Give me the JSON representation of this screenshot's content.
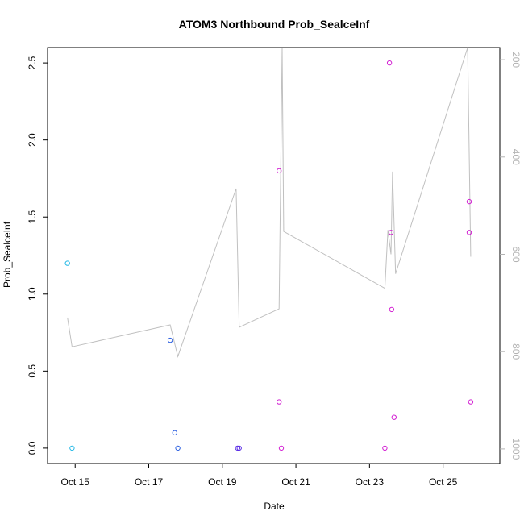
{
  "chart_data": {
    "type": "scatter",
    "title": "ATOM3 Northbound Prob_SealceInf",
    "xlabel": "Date",
    "ylabel": "Prob_SealceInf",
    "xlim": [
      "2014-10-14T06:00",
      "2014-10-26T13:00"
    ],
    "ylim": [
      -0.1,
      2.6
    ],
    "x_ticks": [
      {
        "date": "2014-10-15",
        "label": "Oct 15"
      },
      {
        "date": "2014-10-17",
        "label": "Oct 17"
      },
      {
        "date": "2014-10-19",
        "label": "Oct 19"
      },
      {
        "date": "2014-10-21",
        "label": "Oct 21"
      },
      {
        "date": "2014-10-23",
        "label": "Oct 23"
      },
      {
        "date": "2014-10-25",
        "label": "Oct 25"
      }
    ],
    "y_ticks": [
      "0.0",
      "0.5",
      "1.0",
      "1.5",
      "2.0",
      "2.5"
    ],
    "y2_reversed": true,
    "y2lim": [
      175,
      1030
    ],
    "y2_ticks": [
      "200",
      "400",
      "600",
      "800",
      "1000"
    ],
    "grid": false,
    "colors": {
      "line": "#c0c0c0",
      "cyan": "#22b8e6",
      "blue": "#2a5ee0",
      "indigo": "#5a2ce6",
      "magenta": "#d21ed2",
      "axis": "#000000",
      "axis_right": "#b3b3b3"
    },
    "series": [
      {
        "color_key": "cyan",
        "points": [
          {
            "x": "2014-10-14T19:00",
            "y": 1.2
          },
          {
            "x": "2014-10-14T22:00",
            "y": 0.0
          }
        ]
      },
      {
        "color_key": "blue",
        "points": [
          {
            "x": "2014-10-17T14:00",
            "y": 0.7
          },
          {
            "x": "2014-10-17T17:00",
            "y": 0.1
          },
          {
            "x": "2014-10-17T19:00",
            "y": 0.0
          }
        ]
      },
      {
        "color_key": "indigo",
        "points": [
          {
            "x": "2014-10-19T10:00",
            "y": 0.0
          },
          {
            "x": "2014-10-19T11:00",
            "y": 0.0
          }
        ]
      },
      {
        "color_key": "magenta",
        "points": [
          {
            "x": "2014-10-20T13:00",
            "y": 1.8
          },
          {
            "x": "2014-10-20T13:00",
            "y": 0.3
          },
          {
            "x": "2014-10-20T14:30",
            "y": 0.0
          },
          {
            "x": "2014-10-23T10:00",
            "y": 0.0
          },
          {
            "x": "2014-10-23T13:00",
            "y": 2.5
          },
          {
            "x": "2014-10-23T14:00",
            "y": 1.4
          },
          {
            "x": "2014-10-23T14:30",
            "y": 0.9
          },
          {
            "x": "2014-10-23T16:00",
            "y": 0.2
          },
          {
            "x": "2014-10-25T17:00",
            "y": 1.6
          },
          {
            "x": "2014-10-25T17:00",
            "y": 1.4
          },
          {
            "x": "2014-10-25T18:00",
            "y": 0.3
          }
        ]
      }
    ],
    "line_series": {
      "axis": "right",
      "color_key": "line",
      "points": [
        {
          "x": "2014-10-14T19:00",
          "y": 730
        },
        {
          "x": "2014-10-14T22:00",
          "y": 790
        },
        {
          "x": "2014-10-17T14:00",
          "y": 745
        },
        {
          "x": "2014-10-17T19:00",
          "y": 810
        },
        {
          "x": "2014-10-19T09:00",
          "y": 465
        },
        {
          "x": "2014-10-19T11:00",
          "y": 750
        },
        {
          "x": "2014-10-20T13:00",
          "y": 712
        },
        {
          "x": "2014-10-20T15:00",
          "y": 175
        },
        {
          "x": "2014-10-20T16:00",
          "y": 553
        },
        {
          "x": "2014-10-23T10:00",
          "y": 670
        },
        {
          "x": "2014-10-23T12:00",
          "y": 550
        },
        {
          "x": "2014-10-23T13:00",
          "y": 575
        },
        {
          "x": "2014-10-23T14:00",
          "y": 600
        },
        {
          "x": "2014-10-23T15:00",
          "y": 430
        },
        {
          "x": "2014-10-23T17:00",
          "y": 640
        },
        {
          "x": "2014-10-25T16:00",
          "y": 175
        },
        {
          "x": "2014-10-25T18:00",
          "y": 605
        }
      ]
    }
  }
}
